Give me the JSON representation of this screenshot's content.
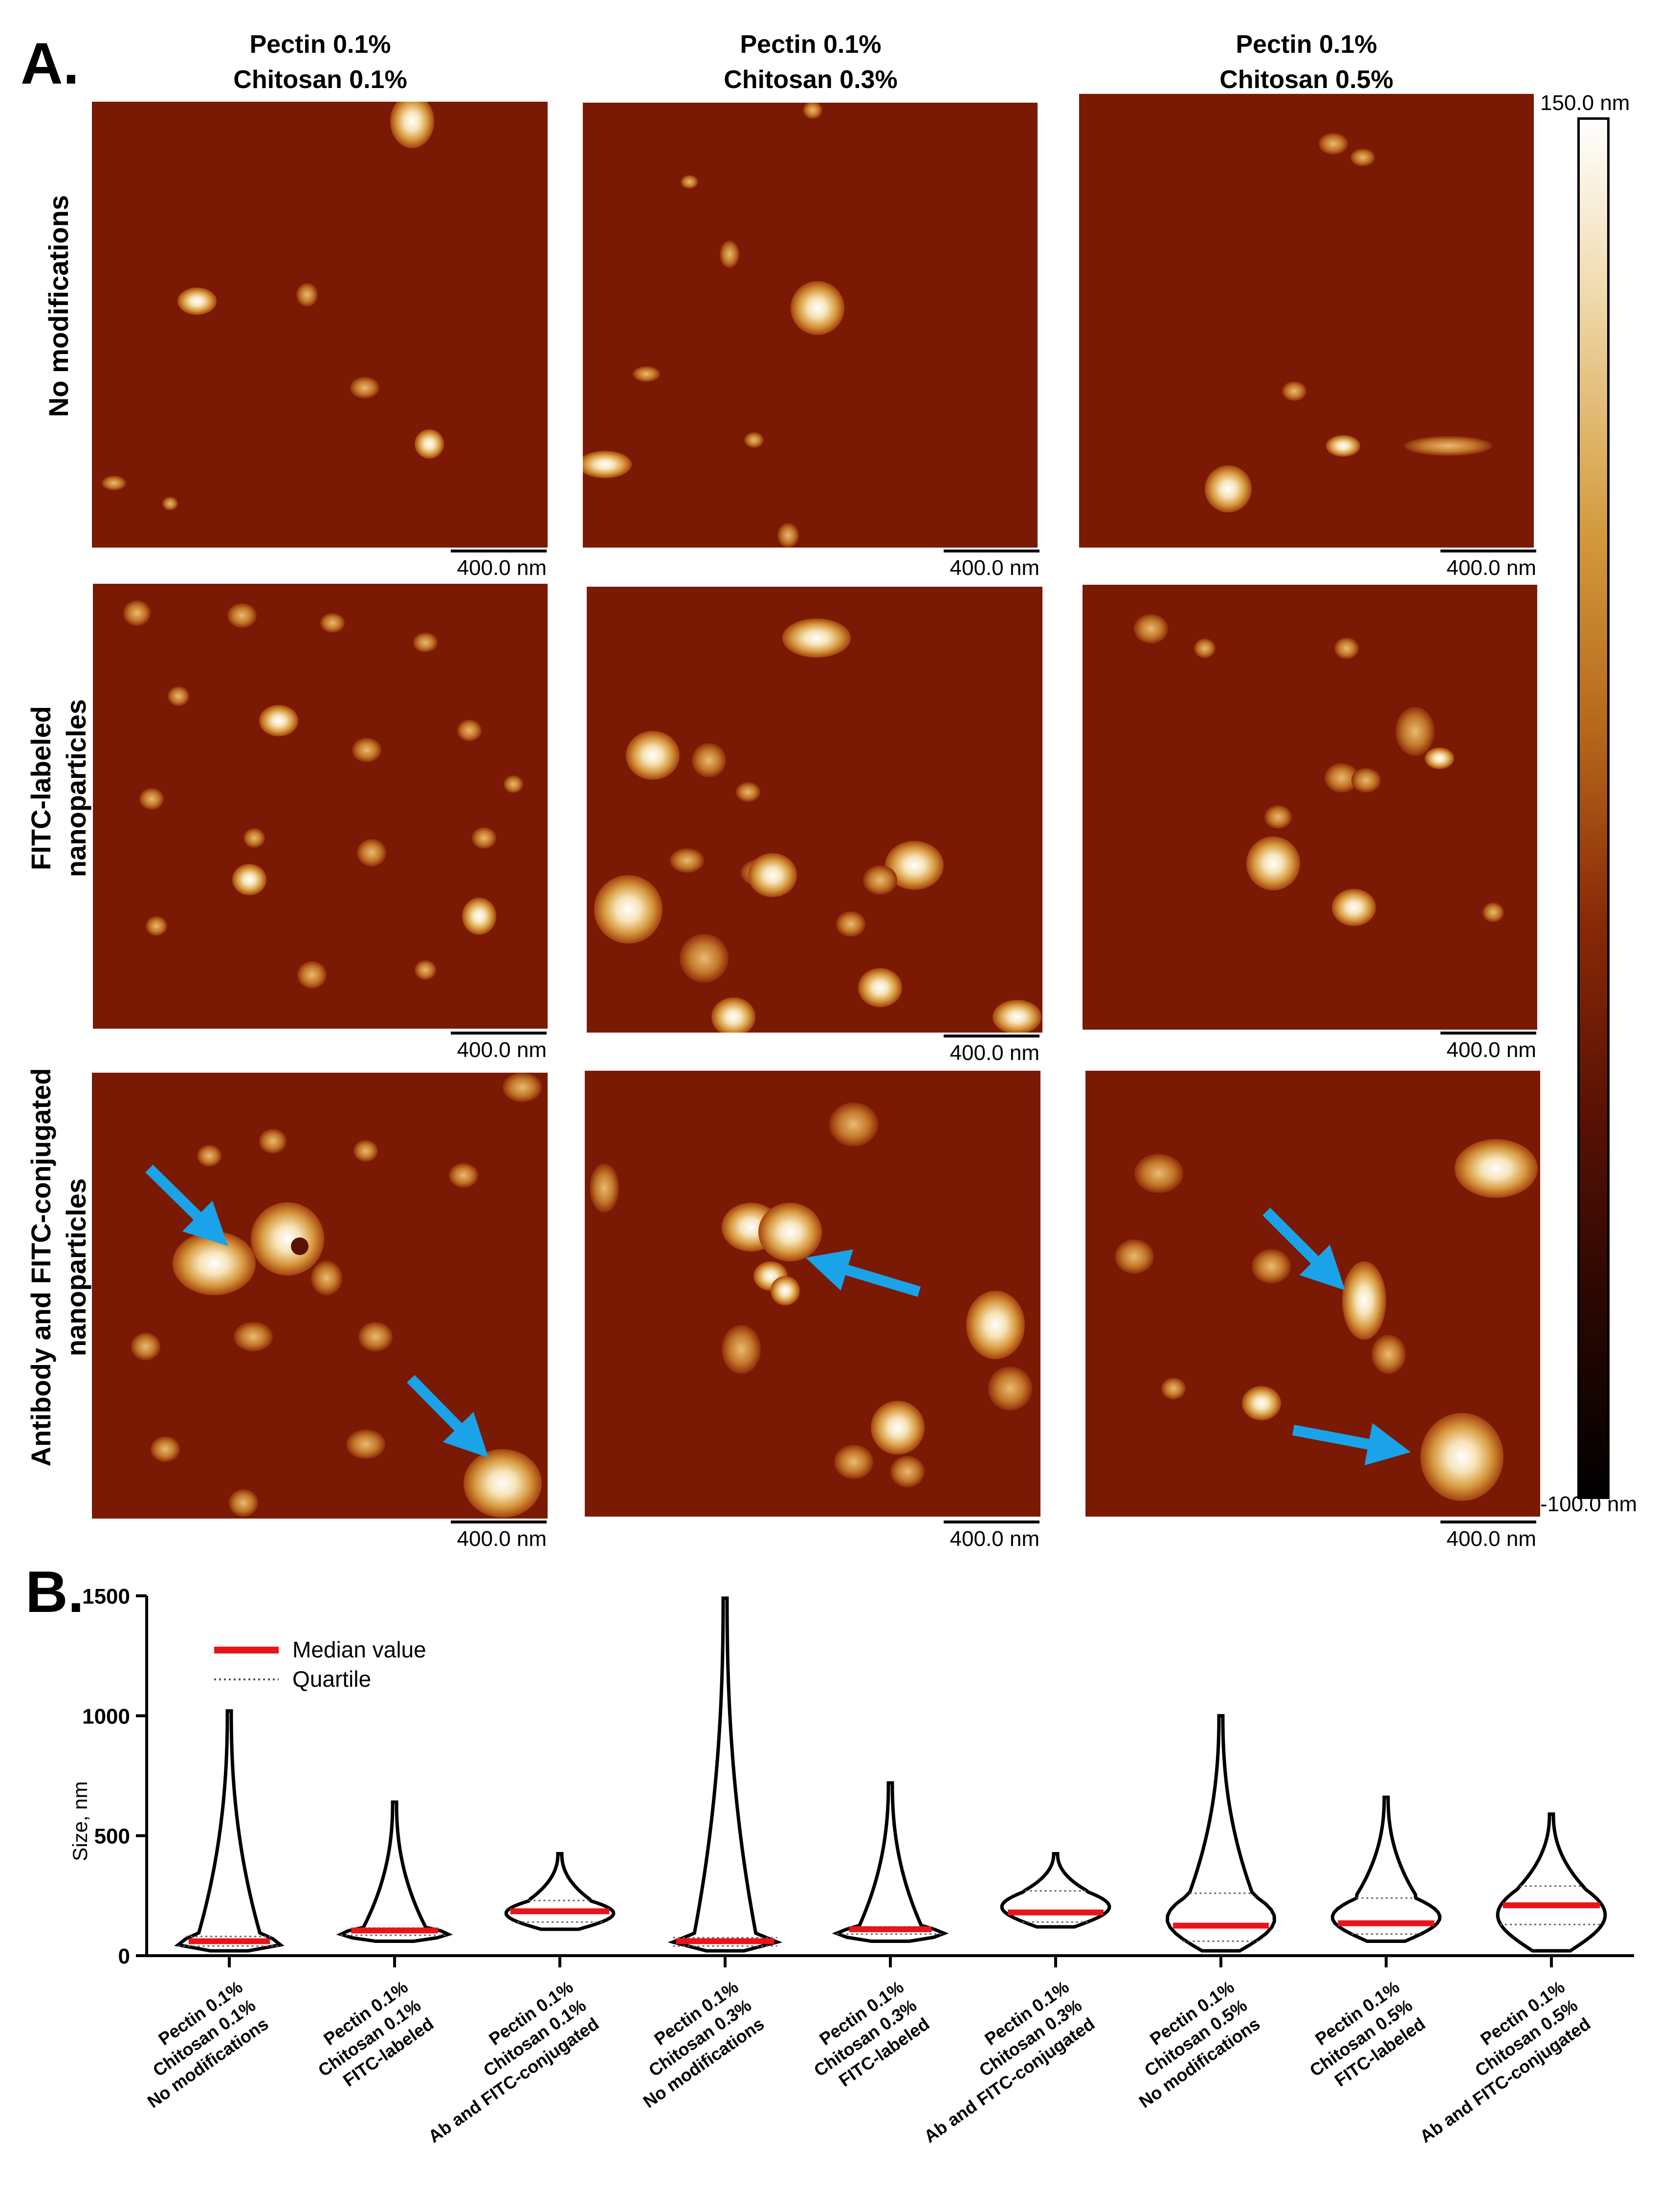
{
  "panel_a": {
    "letter": "A.",
    "columns": [
      {
        "line1": "Pectin 0.1%",
        "line2": "Chitosan 0.1%"
      },
      {
        "line1": "Pectin 0.1%",
        "line2": "Chitosan 0.3%"
      },
      {
        "line1": "Pectin 0.1%",
        "line2": "Chitosan 0.5%"
      }
    ],
    "rows": [
      {
        "line1": "No modifications",
        "line2": ""
      },
      {
        "line1": "FITC-labeled",
        "line2": "nanoparticles"
      },
      {
        "line1": "Antibody and FITC-conjugated",
        "line2": "nanoparticles"
      }
    ],
    "scale_bar_label": "400.0 nm",
    "colorbar": {
      "max_label": "150.0 nm",
      "min_label": "-100.0 nm"
    },
    "colors": {
      "background": "#7a1a04",
      "arrow": "#1aa3e8"
    }
  },
  "panel_b": {
    "letter": "B.",
    "legend": {
      "median": "Median value",
      "quartile": "Quartile"
    },
    "colors": {
      "median": "#e8141a",
      "violin_fill": "#ffffff",
      "violin_stroke": "#000000"
    }
  },
  "chart_data": {
    "type": "violin",
    "ylabel": "Size, nm",
    "ylim": [
      0,
      1500
    ],
    "yticks": [
      0,
      500,
      1000,
      1500
    ],
    "categories": [
      [
        "Pectin 0.1%",
        "Chitosan 0.1%",
        "No modifications"
      ],
      [
        "Pectin 0.1%",
        "Chitosan 0.1%",
        "FITC-labeled"
      ],
      [
        "Pectin 0.1%",
        "Chitosan 0.1%",
        "Ab and FITC-conjugated"
      ],
      [
        "Pectin 0.1%",
        "Chitosan 0.3%",
        "No modifications"
      ],
      [
        "Pectin 0.1%",
        "Chitosan 0.3%",
        "FITC-labeled"
      ],
      [
        "Pectin 0.1%",
        "Chitosan 0.3%",
        "Ab and FITC-conjugated"
      ],
      [
        "Pectin 0.1%",
        "Chitosan 0.5%",
        "No modifications"
      ],
      [
        "Pectin 0.1%",
        "Chitosan 0.5%",
        "FITC-labeled"
      ],
      [
        "Pectin 0.1%",
        "Chitosan 0.5%",
        "Ab and FITC-conjugated"
      ]
    ],
    "series": [
      {
        "min": 20,
        "q1": 40,
        "median": 60,
        "q3": 80,
        "max": 1020
      },
      {
        "min": 60,
        "q1": 85,
        "median": 105,
        "q3": 115,
        "max": 640
      },
      {
        "min": 110,
        "q1": 140,
        "median": 185,
        "q3": 230,
        "max": 425
      },
      {
        "min": 20,
        "q1": 40,
        "median": 60,
        "q3": 75,
        "max": 1490
      },
      {
        "min": 60,
        "q1": 90,
        "median": 110,
        "q3": 120,
        "max": 720
      },
      {
        "min": 120,
        "q1": 140,
        "median": 180,
        "q3": 270,
        "max": 425
      },
      {
        "min": 20,
        "q1": 60,
        "median": 125,
        "q3": 260,
        "max": 1000
      },
      {
        "min": 60,
        "q1": 90,
        "median": 135,
        "q3": 240,
        "max": 660
      },
      {
        "min": 20,
        "q1": 130,
        "median": 210,
        "q3": 290,
        "max": 590
      }
    ],
    "legend_position": "top-left"
  }
}
